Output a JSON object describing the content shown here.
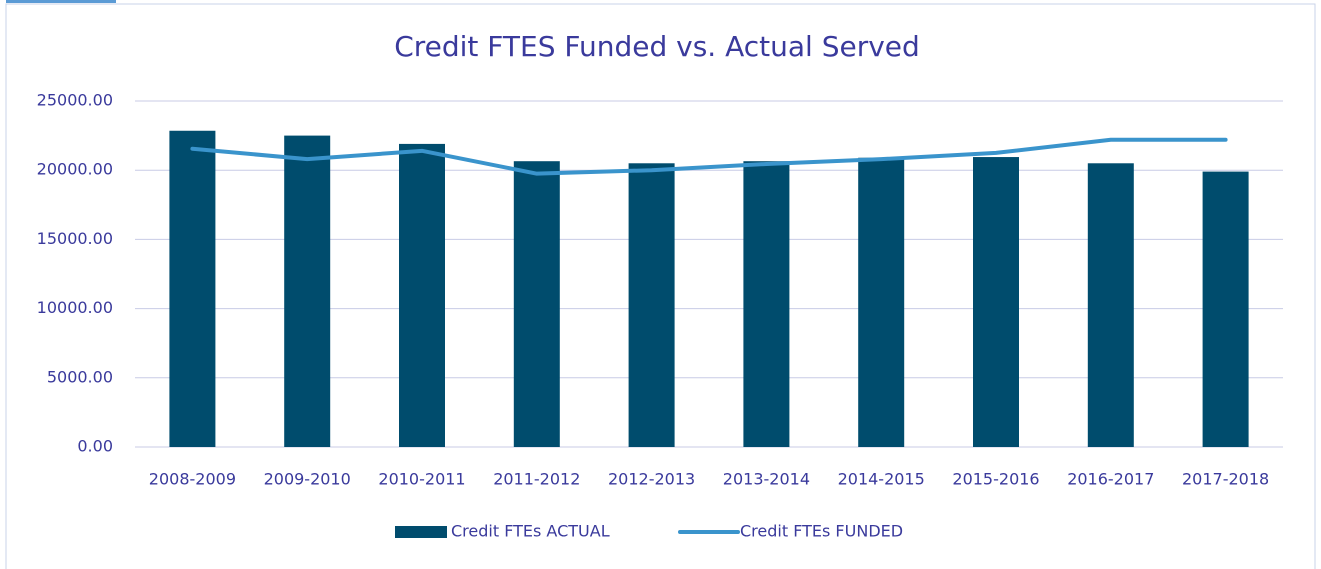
{
  "chart_data": {
    "type": "combo",
    "title": "Credit FTES Funded vs. Actual Served",
    "categories": [
      "2008-2009",
      "2009-2010",
      "2010-2011",
      "2011-2012",
      "2012-2013",
      "2013-2014",
      "2014-2015",
      "2015-2016",
      "2016-2017",
      "2017-2018"
    ],
    "series": [
      {
        "name": "Credit FTEs ACTUAL",
        "type": "bar",
        "color": "#004c6d",
        "values": [
          22850,
          22500,
          21900,
          20650,
          20500,
          20650,
          20900,
          20950,
          20500,
          19900
        ]
      },
      {
        "name": "Credit FTEs FUNDED",
        "type": "line",
        "color": "#3a94cc",
        "values": [
          21550,
          20800,
          21400,
          19750,
          20000,
          20450,
          20800,
          21250,
          22200,
          22200
        ]
      }
    ],
    "ylim": [
      0,
      25000
    ],
    "yticks": [
      {
        "value": 0,
        "label": "0.00"
      },
      {
        "value": 5000,
        "label": "5000.00"
      },
      {
        "value": 10000,
        "label": "10000.00"
      },
      {
        "value": 15000,
        "label": "15000.00"
      },
      {
        "value": 20000,
        "label": "20000.00"
      },
      {
        "value": 25000,
        "label": "25000.00"
      }
    ],
    "grid": true,
    "legend": "bottom"
  }
}
